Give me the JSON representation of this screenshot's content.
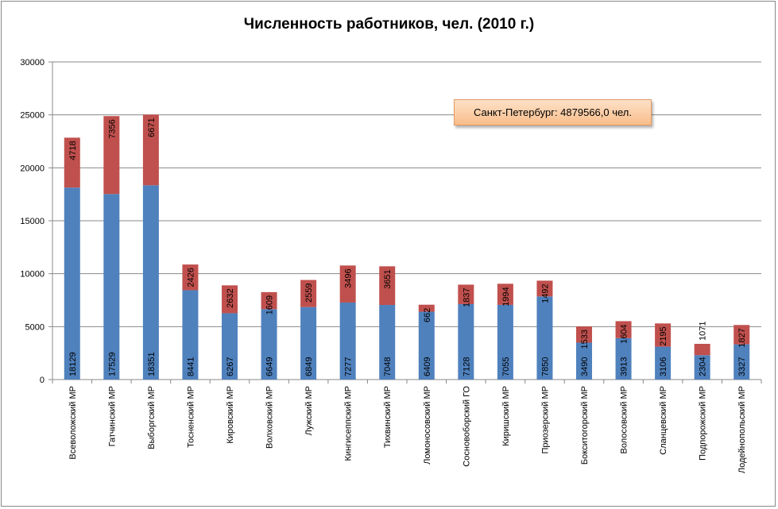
{
  "chart_data": {
    "type": "bar",
    "stacked": true,
    "title": "Численность работников, чел. (2010 г.)",
    "xlabel": "",
    "ylabel": "",
    "ylim": [
      0,
      30000
    ],
    "yticks": [
      0,
      5000,
      10000,
      15000,
      20000,
      25000,
      30000
    ],
    "grid": true,
    "categories": [
      "Всеволожский МР",
      "Гатчинский МР",
      "Выборгский МР",
      "Тосненский МР",
      "Кировский МР",
      "Волховский МР",
      "Лужский МР",
      "Кингисеппский МР",
      "Тихвинский МР",
      "Ломоносовский МР",
      "Сосновоборский ГО",
      "Киришский МР",
      "Приозерский МР",
      "Бокситогорский МР",
      "Волосовский МР",
      "Сланцевский МР",
      "Подпорожский МР",
      "Лодейнопольский МР"
    ],
    "series": [
      {
        "color": "#4f81bd",
        "values": [
          18129,
          17529,
          18351,
          8441,
          6267,
          6649,
          6849,
          7277,
          7048,
          6409,
          7128,
          7055,
          7850,
          3490,
          3913,
          3106,
          2304,
          3327
        ]
      },
      {
        "color": "#c0504d",
        "values": [
          4718,
          7356,
          6671,
          2426,
          2632,
          1609,
          2559,
          3496,
          3651,
          662,
          1837,
          1994,
          1492,
          1533,
          1604,
          2195,
          1071,
          1827
        ]
      }
    ],
    "annotation": "Санкт-Петербург: 4879566,0 чел."
  }
}
